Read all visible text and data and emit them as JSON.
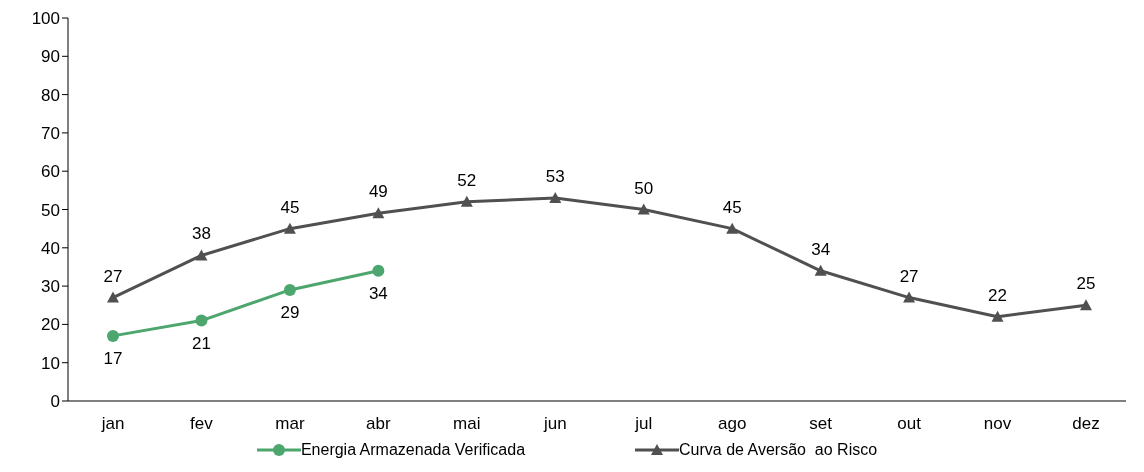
{
  "chart_data": {
    "type": "line",
    "categories": [
      "jan",
      "fev",
      "mar",
      "abr",
      "mai",
      "jun",
      "jul",
      "ago",
      "set",
      "out",
      "nov",
      "dez"
    ],
    "series": [
      {
        "name": "Energia Armazenada Verificada",
        "color": "#4ea66f",
        "marker": "circle",
        "values": [
          17,
          21,
          29,
          34,
          null,
          null,
          null,
          null,
          null,
          null,
          null,
          null
        ]
      },
      {
        "name": "Curva de Aversão  ao Risco",
        "color": "#505050",
        "marker": "triangle",
        "values": [
          27,
          38,
          45,
          49,
          52,
          53,
          50,
          45,
          34,
          27,
          22,
          25
        ]
      }
    ],
    "ylim": [
      0,
      100
    ],
    "yticks": [
      0,
      10,
      20,
      30,
      40,
      50,
      60,
      70,
      80,
      90,
      100
    ],
    "grid": false,
    "legend": "bottom",
    "data_labels": true,
    "line_style": "solid"
  }
}
